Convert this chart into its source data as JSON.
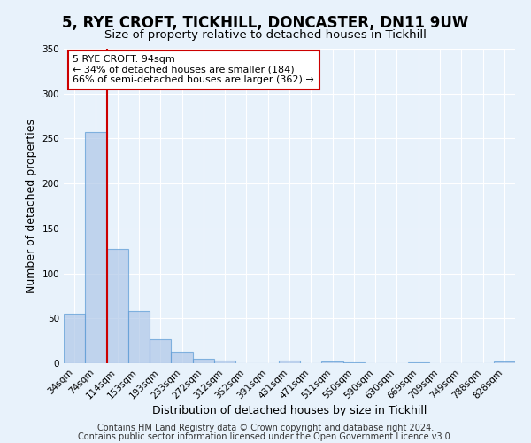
{
  "title": "5, RYE CROFT, TICKHILL, DONCASTER, DN11 9UW",
  "subtitle": "Size of property relative to detached houses in Tickhill",
  "xlabel": "Distribution of detached houses by size in Tickhill",
  "ylabel": "Number of detached properties",
  "bin_labels": [
    "34sqm",
    "74sqm",
    "114sqm",
    "153sqm",
    "193sqm",
    "233sqm",
    "272sqm",
    "312sqm",
    "352sqm",
    "391sqm",
    "431sqm",
    "471sqm",
    "511sqm",
    "550sqm",
    "590sqm",
    "630sqm",
    "669sqm",
    "709sqm",
    "749sqm",
    "788sqm",
    "828sqm"
  ],
  "bar_heights": [
    55,
    257,
    127,
    58,
    27,
    13,
    5,
    3,
    0,
    0,
    3,
    0,
    2,
    1,
    0,
    0,
    1,
    0,
    0,
    0,
    2
  ],
  "bar_color": "#aec6e8",
  "bar_edge_color": "#5b9bd5",
  "bar_alpha": 0.7,
  "vline_color": "#cc0000",
  "annotation_box_text": "5 RYE CROFT: 94sqm\n← 34% of detached houses are smaller (184)\n66% of semi-detached houses are larger (362) →",
  "annotation_box_color": "#ffffff",
  "annotation_box_edge_color": "#cc0000",
  "ylim": [
    0,
    350
  ],
  "yticks": [
    0,
    50,
    100,
    150,
    200,
    250,
    300,
    350
  ],
  "footnote1": "Contains HM Land Registry data © Crown copyright and database right 2024.",
  "footnote2": "Contains public sector information licensed under the Open Government Licence v3.0.",
  "background_color": "#e8f2fb",
  "title_fontsize": 12,
  "subtitle_fontsize": 9.5,
  "axis_label_fontsize": 9,
  "tick_fontsize": 7.5,
  "annotation_fontsize": 8,
  "footnote_fontsize": 7
}
